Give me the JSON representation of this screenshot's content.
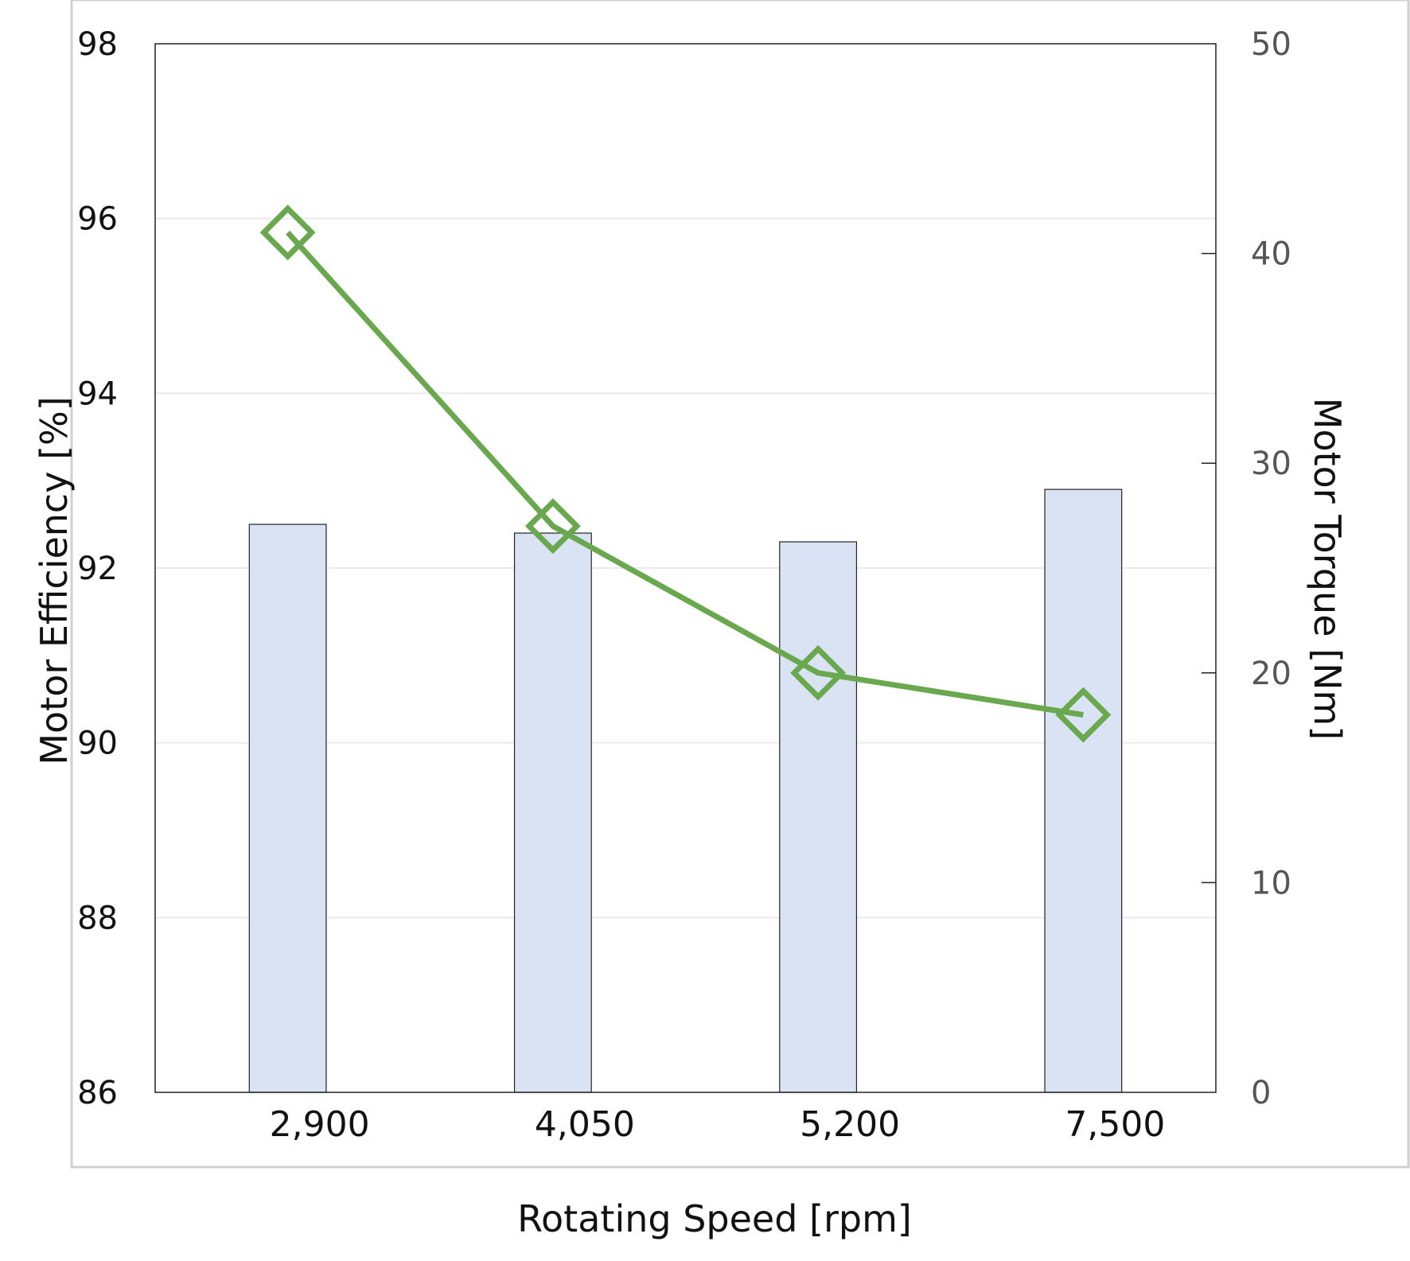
{
  "chart_data": {
    "type": "bar",
    "categories": [
      "2,900",
      "4,050",
      "5,200",
      "7,500"
    ],
    "xlabel": "Rotating Speed [rpm]",
    "ylabel_left": "Motor Efficiency [%]",
    "ylabel_right": "Motor Torque [Nm]",
    "ylim_left": [
      86,
      98
    ],
    "ylim_right": [
      0,
      50
    ],
    "yticks_left": [
      "86",
      "88",
      "90",
      "92",
      "94",
      "96",
      "98"
    ],
    "yticks_right": [
      "0",
      "10",
      "20",
      "30",
      "40",
      "50"
    ],
    "grid": "horizontal, left axis",
    "series": [
      {
        "type": "bar",
        "axis": "left",
        "values": [
          92.5,
          92.4,
          92.3,
          92.9
        ],
        "color": "#dae3f3",
        "edge_color": "#222222"
      },
      {
        "type": "line",
        "axis": "right",
        "marker": "diamond",
        "values": [
          41.0,
          27.0,
          20.0,
          18.0
        ],
        "color": "#6aa84f"
      }
    ]
  }
}
